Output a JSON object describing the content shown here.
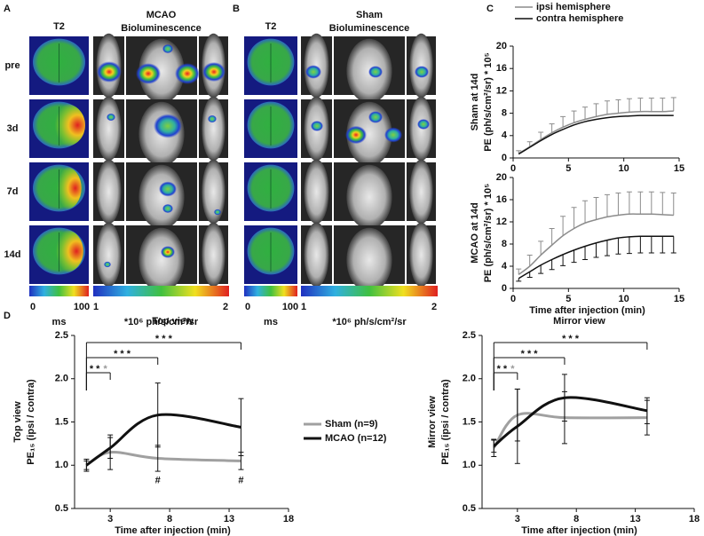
{
  "panel_labels": [
    "A",
    "B",
    "C",
    "D"
  ],
  "panels": {
    "A": {
      "t2_header": "T2",
      "group": "MCAO",
      "modality": "Bioluminescence",
      "rows": [
        "pre",
        "3d",
        "7d",
        "14d"
      ],
      "t2_scale": [
        "0",
        "100",
        "ms"
      ],
      "bl_scale": [
        "1",
        "2",
        "*10⁶ ph/s/cm²/sr"
      ]
    },
    "B": {
      "t2_header": "T2",
      "group": "Sham",
      "modality": "Bioluminescence",
      "t2_scale": [
        "0",
        "100",
        "ms"
      ],
      "bl_scale": [
        "1",
        "2",
        "*10⁶ ph/s/cm²/sr"
      ]
    }
  },
  "chart_data": [
    {
      "type": "line",
      "y_label": [
        "Sham at 14d",
        "PE (ph/s/cm²/sr) * 10⁵"
      ],
      "x": [
        0.5,
        1.5,
        2.5,
        3.5,
        4.5,
        5.5,
        6.5,
        7.5,
        8.5,
        9.5,
        10.5,
        11.5,
        12.5,
        13.5,
        14.5
      ],
      "series": [
        {
          "name": "ipsi hemisphere",
          "color": "#8c8c8c",
          "error_side": "up",
          "values": [
            0.8,
            2,
            3.3,
            4.5,
            5.5,
            6.3,
            6.9,
            7.4,
            7.8,
            8.0,
            8.2,
            8.3,
            8.3,
            8.3,
            8.4
          ],
          "errors": [
            0.5,
            0.9,
            1.3,
            1.6,
            1.9,
            2.1,
            2.2,
            2.3,
            2.4,
            2.4,
            2.4,
            2.4,
            2.4,
            2.4,
            2.4
          ]
        },
        {
          "name": "contra hemisphere",
          "color": "#111111",
          "values": [
            0.7,
            1.9,
            3.1,
            4.2,
            5.1,
            5.9,
            6.5,
            6.9,
            7.2,
            7.4,
            7.5,
            7.6,
            7.6,
            7.6,
            7.6
          ]
        }
      ],
      "xlim": [
        0,
        15
      ],
      "xticks": [
        0,
        5,
        10,
        15
      ],
      "ylim": [
        0,
        20
      ],
      "yticks": [
        0,
        4,
        8,
        12,
        16,
        20
      ]
    },
    {
      "type": "line",
      "y_label": [
        "MCAO at 14d",
        "PE (ph/s/cm²/sr) * 10⁵"
      ],
      "x_label": "Time after injection (min)",
      "x": [
        0.5,
        1.5,
        2.5,
        3.5,
        4.5,
        5.5,
        6.5,
        7.5,
        8.5,
        9.5,
        10.5,
        11.5,
        12.5,
        13.5,
        14.5
      ],
      "series": [
        {
          "color": "#8c8c8c",
          "error_side": "up",
          "values": [
            2.5,
            4,
            6,
            7.8,
            9.5,
            10.8,
            11.8,
            12.4,
            12.9,
            13.2,
            13.4,
            13.4,
            13.4,
            13.3,
            13.2
          ],
          "errors": [
            1,
            2,
            2.5,
            3,
            3.5,
            3.8,
            4,
            4,
            4,
            4,
            4,
            4,
            4,
            4,
            4
          ]
        },
        {
          "color": "#111111",
          "error_side": "down",
          "values": [
            1.8,
            3,
            4.2,
            5.2,
            6.1,
            6.9,
            7.6,
            8.2,
            8.7,
            9.1,
            9.3,
            9.4,
            9.4,
            9.4,
            9.4
          ],
          "errors": [
            0.5,
            1,
            1.5,
            1.8,
            2,
            2.2,
            2.4,
            2.6,
            2.8,
            2.9,
            3,
            3,
            3,
            3,
            3
          ]
        }
      ],
      "xlim": [
        0,
        15
      ],
      "xticks": [
        0,
        5,
        10,
        15
      ],
      "ylim": [
        0,
        20
      ],
      "yticks": [
        0,
        4,
        8,
        12,
        16,
        20
      ]
    },
    {
      "type": "line",
      "title": "Top view",
      "y_label": [
        "Top view",
        "PE₁₅ (ipsi / contra)"
      ],
      "x_label": "Time after injection (min)",
      "x": [
        1,
        3,
        7,
        14
      ],
      "series": [
        {
          "name": "Sham (n=9)",
          "color": "#a0a0a0",
          "error_side": "both",
          "values": [
            1.0,
            1.15,
            1.08,
            1.05
          ],
          "errors": [
            0.07,
            0.2,
            0.15,
            0.1
          ]
        },
        {
          "name": "MCAO (n=12)",
          "color": "#111111",
          "error_side": "both",
          "values": [
            1.0,
            1.2,
            1.58,
            1.44
          ],
          "errors": [
            0.05,
            0.12,
            0.37,
            0.33
          ]
        }
      ],
      "brackets": [
        {
          "x": [
            1,
            3
          ],
          "label": "* *",
          "label_gray": "*"
        },
        {
          "x": [
            1,
            7
          ],
          "label": "* * *"
        },
        {
          "x": [
            1,
            14
          ],
          "label": "* * *"
        }
      ],
      "marks": [
        {
          "x": 7,
          "label": "#"
        },
        {
          "x": 14,
          "label": "#"
        }
      ],
      "xlim": [
        0,
        18
      ],
      "xticks": [
        3,
        8,
        13,
        18
      ],
      "ylim": [
        0.5,
        2.5
      ],
      "yticks": [
        0.5,
        {
          "value": 1,
          "label": "1.0"
        },
        1.5,
        {
          "value": 2,
          "label": "2.0"
        },
        2.5
      ]
    },
    {
      "type": "line",
      "title": "Mirror view",
      "y_label": [
        "Mirror view",
        "PE₁₅ (ipsi / contra)"
      ],
      "x_label": "Time after injection (min)",
      "x": [
        1,
        3,
        7,
        14
      ],
      "series": [
        {
          "color": "#a0a0a0",
          "error_side": "both",
          "values": [
            1.2,
            1.58,
            1.55,
            1.55
          ],
          "errors": [
            0.1,
            0.3,
            0.3,
            0.2
          ]
        },
        {
          "color": "#111111",
          "error_side": "both",
          "values": [
            1.22,
            1.45,
            1.78,
            1.63
          ],
          "errors": [
            0.07,
            0.43,
            0.27,
            0.15
          ]
        }
      ],
      "brackets": [
        {
          "x": [
            1,
            3
          ],
          "label": "* *",
          "label_gray": "*"
        },
        {
          "x": [
            1,
            7
          ],
          "label": "* * *"
        },
        {
          "x": [
            1,
            14
          ],
          "label": "* * *"
        }
      ],
      "xlim": [
        0,
        18
      ],
      "xticks": [
        3,
        8,
        13,
        18
      ],
      "ylim": [
        0.5,
        2.5
      ],
      "yticks": [
        0.5,
        {
          "value": 1,
          "label": "1.0"
        },
        1.5,
        {
          "value": 2,
          "label": "2.0"
        },
        2.5
      ]
    }
  ]
}
